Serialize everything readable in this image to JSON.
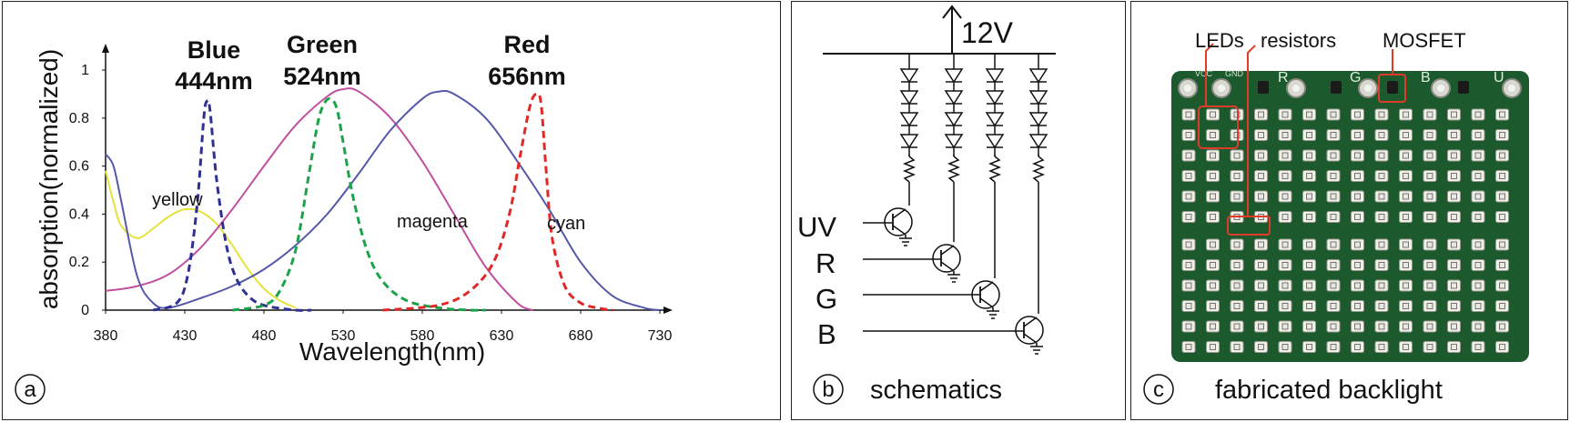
{
  "panel_a": {
    "letter": "a",
    "chart_data": {
      "type": "line",
      "xlabel": "Wavelength(nm)",
      "ylabel": "absorption(normalized)",
      "xlim": [
        380,
        730
      ],
      "ylim": [
        0,
        1
      ],
      "x_ticks": [
        "380",
        "430",
        "480",
        "530",
        "580",
        "630",
        "680",
        "730"
      ],
      "y_ticks": [
        "0",
        "0.2",
        "0.4",
        "0.6",
        "0.8",
        "1"
      ],
      "series": [
        {
          "name": "yellow",
          "style": "solid",
          "color": "#e6e23c",
          "x": [
            380,
            385,
            390,
            400,
            410,
            420,
            430,
            440,
            450,
            460,
            470,
            480,
            490,
            500
          ],
          "y": [
            0.58,
            0.45,
            0.35,
            0.3,
            0.34,
            0.39,
            0.42,
            0.41,
            0.36,
            0.27,
            0.17,
            0.09,
            0.04,
            0.01
          ]
        },
        {
          "name": "magenta",
          "style": "solid",
          "color": "#c0509e",
          "x": [
            380,
            400,
            420,
            440,
            460,
            480,
            500,
            520,
            530,
            540,
            560,
            580,
            600,
            620,
            640,
            650
          ],
          "y": [
            0.08,
            0.1,
            0.15,
            0.26,
            0.42,
            0.6,
            0.77,
            0.89,
            0.92,
            0.91,
            0.8,
            0.62,
            0.4,
            0.18,
            0.03,
            0.0
          ]
        },
        {
          "name": "cyan",
          "style": "solid",
          "color": "#5558a8",
          "x": [
            380,
            385,
            390,
            400,
            410,
            420,
            440,
            460,
            480,
            500,
            520,
            540,
            560,
            580,
            590,
            600,
            620,
            640,
            660,
            680,
            700,
            720,
            730
          ],
          "y": [
            0.65,
            0.6,
            0.45,
            0.14,
            0.03,
            0.01,
            0.05,
            0.1,
            0.17,
            0.27,
            0.4,
            0.57,
            0.75,
            0.88,
            0.91,
            0.9,
            0.8,
            0.62,
            0.42,
            0.2,
            0.06,
            0.01,
            0.0
          ]
        },
        {
          "name": "Blue 444nm",
          "style": "dashed",
          "color": "#2e3192",
          "x": [
            410,
            425,
            432,
            438,
            442,
            444,
            446,
            450,
            456,
            462,
            470,
            480,
            500,
            510
          ],
          "y": [
            0.0,
            0.03,
            0.15,
            0.45,
            0.8,
            0.87,
            0.83,
            0.55,
            0.28,
            0.14,
            0.06,
            0.02,
            0.0,
            0.0
          ]
        },
        {
          "name": "Green 524nm",
          "style": "dashed",
          "color": "#1aa44a",
          "x": [
            460,
            480,
            490,
            500,
            508,
            514,
            518,
            522,
            526,
            530,
            536,
            545,
            555,
            570,
            590,
            610,
            620
          ],
          "y": [
            0.0,
            0.02,
            0.08,
            0.25,
            0.55,
            0.78,
            0.86,
            0.88,
            0.84,
            0.7,
            0.48,
            0.25,
            0.12,
            0.04,
            0.01,
            0.0,
            0.0
          ]
        },
        {
          "name": "Red 656nm",
          "style": "dashed",
          "color": "#e02828",
          "x": [
            555,
            590,
            610,
            625,
            635,
            642,
            648,
            652,
            655,
            658,
            662,
            670,
            680,
            690,
            700
          ],
          "y": [
            0.0,
            0.02,
            0.08,
            0.2,
            0.4,
            0.65,
            0.85,
            0.9,
            0.86,
            0.6,
            0.3,
            0.1,
            0.03,
            0.01,
            0.0
          ]
        }
      ],
      "annotations": {
        "blue_name": "Blue",
        "blue_nm": "444nm",
        "green_name": "Green",
        "green_nm": "524nm",
        "red_name": "Red",
        "red_nm": "656nm",
        "yellow": "yellow",
        "magenta": "magenta",
        "cyan": "cyan"
      }
    }
  },
  "panel_b": {
    "letter": "b",
    "caption": "schematics",
    "supply": "12V",
    "inputs": [
      "UV",
      "R",
      "G",
      "B"
    ]
  },
  "panel_c": {
    "letter": "c",
    "caption": "fabricated backlight",
    "callouts": [
      "LEDs",
      "resistors",
      "MOSFET"
    ],
    "board_labels": {
      "vcc": "VCC",
      "gnd": "GND",
      "r": "R",
      "g": "G",
      "b": "B",
      "u": "U"
    }
  }
}
